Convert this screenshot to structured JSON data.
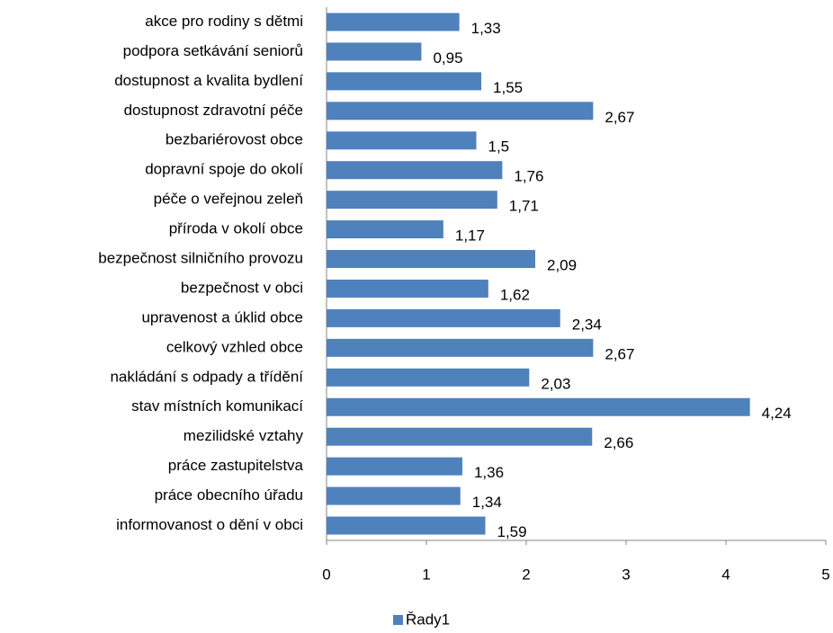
{
  "chart_data": {
    "type": "barh",
    "categories": [
      "akce pro rodiny s dětmi",
      "podpora setkávání seniorů",
      "dostupnost a kvalita bydlení",
      "dostupnost zdravotní péče",
      "bezbariérovost obce",
      "dopravní spoje do okolí ",
      "péče o veřejnou zeleň",
      "příroda v okolí obce",
      "bezpečnost silničního provozu",
      "bezpečnost v obci",
      "upravenost a úklid obce",
      "celkový vzhled obce",
      "nakládání s odpady a třídění",
      "stav místních komunikací",
      "mezilidské vztahy",
      "práce zastupitelstva",
      "práce obecního úřadu",
      "informovanost o dění v obci"
    ],
    "series": [
      {
        "name": "Řady1",
        "color": "#4f81bd",
        "values": [
          1.33,
          0.95,
          1.55,
          2.67,
          1.5,
          1.76,
          1.71,
          1.17,
          2.09,
          1.62,
          2.34,
          2.67,
          2.03,
          4.24,
          2.66,
          1.36,
          1.34,
          1.59
        ],
        "value_labels": [
          "1,33",
          "0,95",
          "1,55",
          "2,67",
          "1,5",
          "1,76",
          "1,71",
          "1,17",
          "2,09",
          "1,62",
          "2,34",
          "2,67",
          "2,03",
          "4,24",
          "2,66",
          "1,36",
          "1,34",
          "1,59"
        ]
      }
    ],
    "xlim": [
      0,
      5
    ],
    "xticks": [
      0,
      1,
      2,
      3,
      4,
      5
    ],
    "legend": "bottom"
  }
}
